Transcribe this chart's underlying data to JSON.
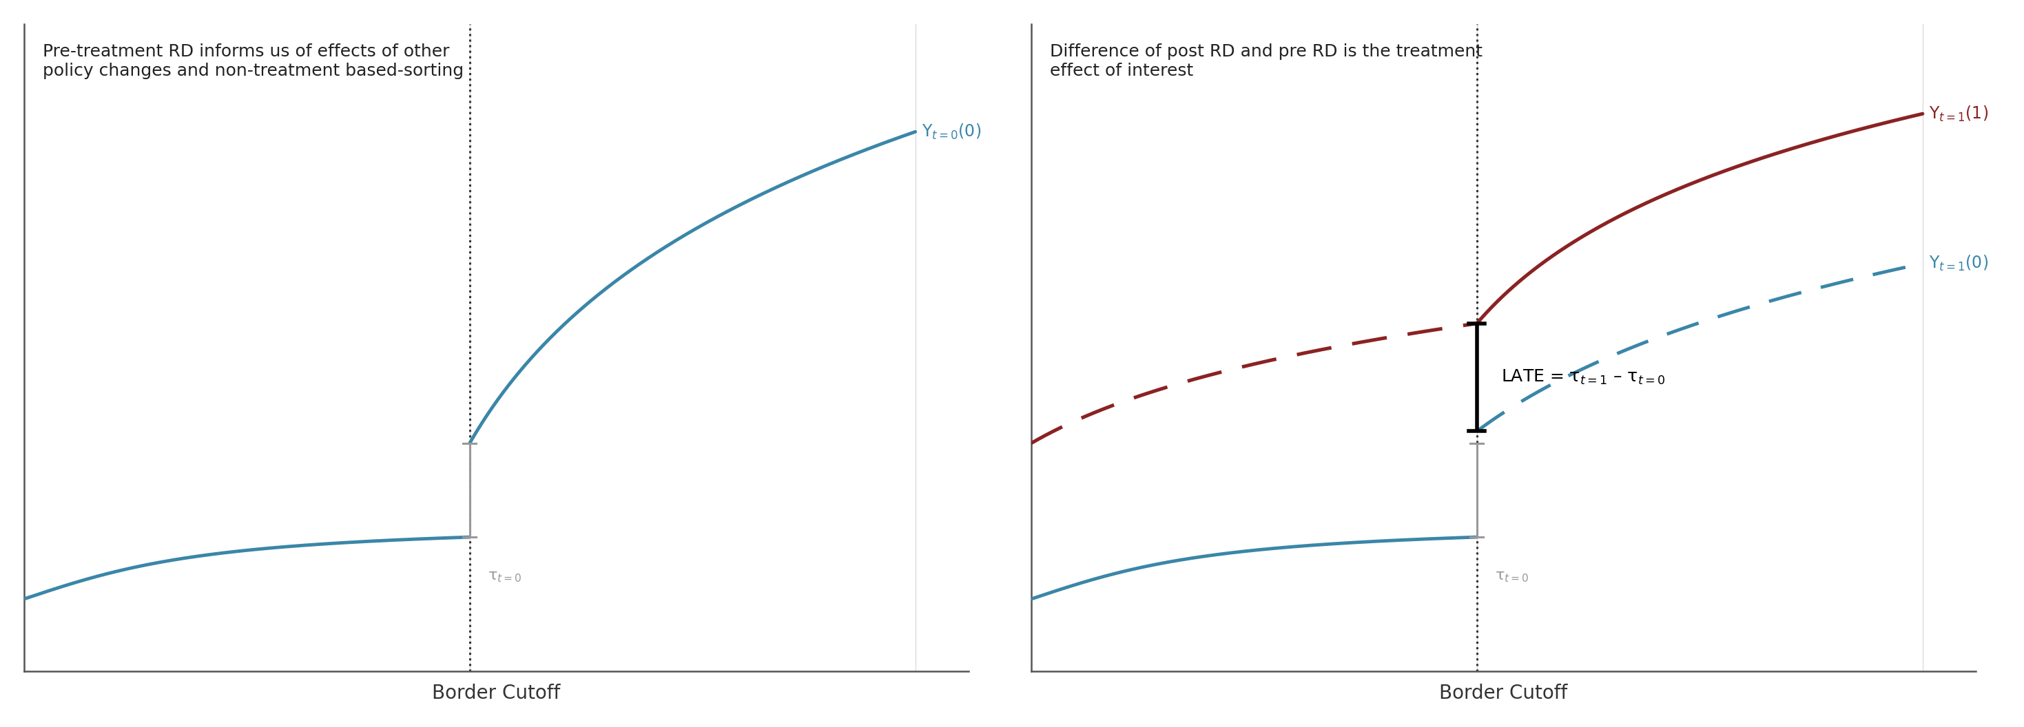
{
  "fig_width": 29.38,
  "fig_height": 10.56,
  "background_color": "#ffffff",
  "panel_bg": "#ffffff",
  "grid_color": "#d8d8d8",
  "teal_color": "#3a86a8",
  "red_color": "#8b2222",
  "gray_color": "#999999",
  "black_color": "#111111",
  "label_Yt0_0": "Y$_{t=0}$(0)",
  "label_Yt1_1": "Y$_{t=1}$(1)",
  "label_Yt1_0": "Y$_{t=1}$(0)",
  "tau_label": "τ$_{t=0}$",
  "late_label": "LATE = τ$_{t=1}$ – τ$_{t=0}$",
  "left_title": "Pre-treatment RD informs us of effects of other\npolicy changes and non-treatment based-sorting",
  "right_title": "Difference of post RD and pre RD is the treatment\neffect of interest",
  "xlabel": "Border Cutoff",
  "title_fontsize": 18,
  "label_fontsize": 17,
  "axis_label_fontsize": 20,
  "tau_fontsize": 16,
  "late_fontsize": 18
}
